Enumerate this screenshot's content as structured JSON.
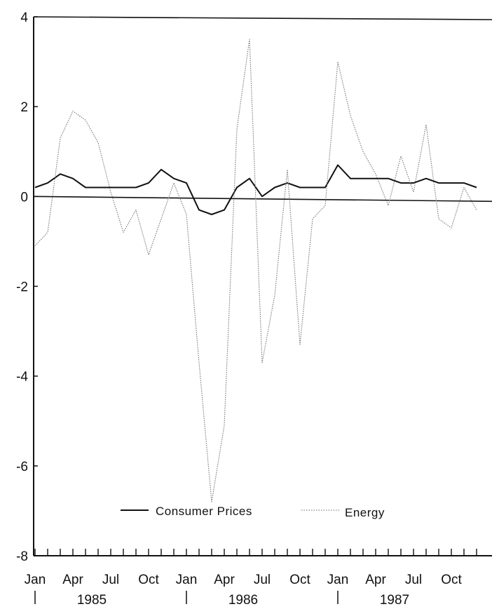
{
  "chart_data": {
    "type": "line",
    "title": "",
    "xlabel": "",
    "ylabel": "",
    "ylim": [
      -8,
      4
    ],
    "yticks": [
      4,
      2,
      0,
      -2,
      -4,
      -6,
      -8
    ],
    "x_month_labels": [
      "Jan",
      "Apr",
      "Jul",
      "Oct",
      "Jan",
      "Apr",
      "Jul",
      "Oct",
      "Jan",
      "Apr",
      "Jul",
      "Oct"
    ],
    "x_month_index": [
      0,
      3,
      6,
      9,
      12,
      15,
      18,
      21,
      24,
      27,
      30,
      33
    ],
    "x_year_labels": [
      "1985",
      "1986",
      "1987"
    ],
    "x_year_center_index": [
      4.5,
      16.5,
      28.5
    ],
    "x_year_divider_index": [
      0,
      12,
      24
    ],
    "x": [
      "Jan 1985",
      "Feb 1985",
      "Mar 1985",
      "Apr 1985",
      "May 1985",
      "Jun 1985",
      "Jul 1985",
      "Aug 1985",
      "Sep 1985",
      "Oct 1985",
      "Nov 1985",
      "Dec 1985",
      "Jan 1986",
      "Feb 1986",
      "Mar 1986",
      "Apr 1986",
      "May 1986",
      "Jun 1986",
      "Jul 1986",
      "Aug 1986",
      "Sep 1986",
      "Oct 1986",
      "Nov 1986",
      "Dec 1986",
      "Jan 1987",
      "Feb 1987",
      "Mar 1987",
      "Apr 1987",
      "May 1987",
      "Jun 1987",
      "Jul 1987",
      "Aug 1987",
      "Sep 1987",
      "Oct 1987",
      "Nov 1987",
      "Dec 1987"
    ],
    "series": [
      {
        "name": "Consumer Prices",
        "style": "solid",
        "color": "#111111",
        "values": [
          0.2,
          0.3,
          0.5,
          0.4,
          0.2,
          0.2,
          0.2,
          0.2,
          0.2,
          0.3,
          0.6,
          0.4,
          0.3,
          -0.3,
          -0.4,
          -0.3,
          0.2,
          0.4,
          0.0,
          0.2,
          0.3,
          0.2,
          0.2,
          0.2,
          0.7,
          0.4,
          0.4,
          0.4,
          0.4,
          0.3,
          0.3,
          0.4,
          0.3,
          0.3,
          0.3,
          0.2
        ]
      },
      {
        "name": "Energy",
        "style": "dotted",
        "color": "#777777",
        "values": [
          -1.1,
          -0.8,
          1.3,
          1.9,
          1.7,
          1.2,
          0.1,
          -0.8,
          -0.3,
          -1.3,
          -0.5,
          0.3,
          -0.4,
          -3.7,
          -6.8,
          -5.1,
          1.5,
          3.5,
          -3.7,
          -2.2,
          0.6,
          -3.3,
          -0.5,
          -0.2,
          3.0,
          1.8,
          1.0,
          0.5,
          -0.2,
          0.9,
          0.1,
          1.6,
          -0.5,
          -0.7,
          0.2,
          -0.3
        ]
      }
    ],
    "zero_line": true,
    "grid": false,
    "legend_placement": "bottom-center"
  }
}
